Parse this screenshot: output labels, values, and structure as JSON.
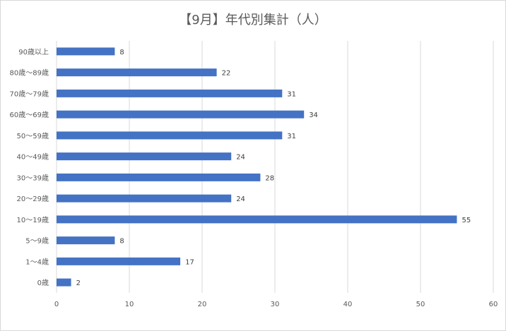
{
  "chart_data": {
    "type": "bar",
    "orientation": "horizontal",
    "title": "【9月】年代別集計（人）",
    "categories": [
      "90歳以上",
      "80歳〜89歳",
      "70歳〜79歳",
      "60歳〜69歳",
      "50〜59歳",
      "40〜49歳",
      "30〜39歳",
      "20〜29歳",
      "10〜19歳",
      "5〜9歳",
      "1〜4歳",
      "0歳"
    ],
    "values": [
      8,
      22,
      31,
      34,
      31,
      24,
      28,
      24,
      55,
      8,
      17,
      2
    ],
    "xlim": [
      0,
      60
    ],
    "xticks": [
      0,
      10,
      20,
      30,
      40,
      50,
      60
    ],
    "grid": "vertical",
    "legend": "none",
    "bar_color": "#4472c4",
    "grid_color": "#d9d9d9"
  }
}
